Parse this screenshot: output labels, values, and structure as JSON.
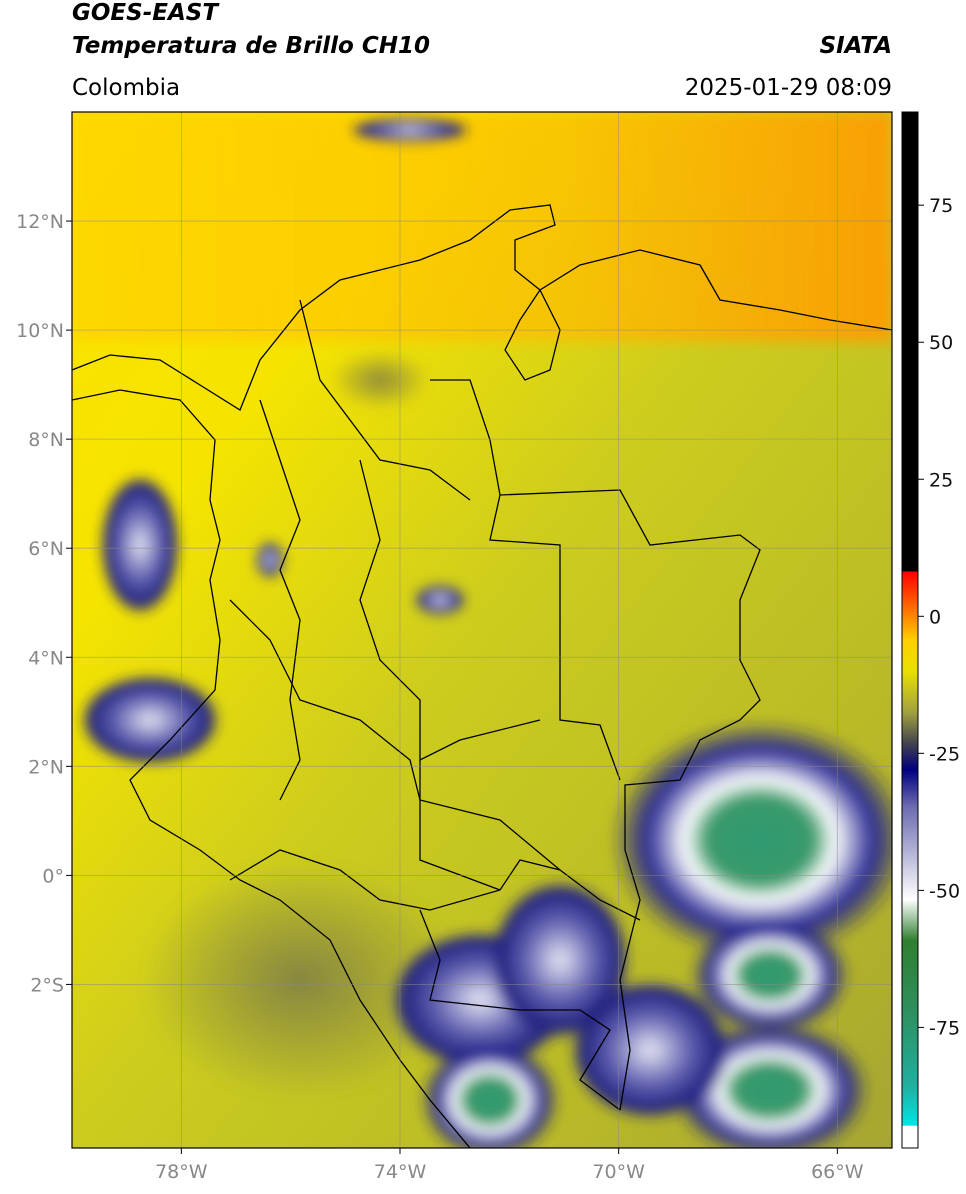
{
  "header": {
    "title": "GOES-EAST",
    "subtitle": "Temperatura de Brillo CH10",
    "source": "SIATA",
    "region": "Colombia",
    "datetime": "2025-01-29 08:09"
  },
  "map": {
    "xlim": [
      -80,
      -65
    ],
    "ylim": [
      -5,
      14
    ],
    "xticks": [
      {
        "value": -78,
        "label": "78°W"
      },
      {
        "value": -74,
        "label": "74°W"
      },
      {
        "value": -70,
        "label": "70°W"
      },
      {
        "value": -66,
        "label": "66°W"
      }
    ],
    "yticks": [
      {
        "value": 12,
        "label": "12°N"
      },
      {
        "value": 10,
        "label": "10°N"
      },
      {
        "value": 8,
        "label": "8°N"
      },
      {
        "value": 6,
        "label": "6°N"
      },
      {
        "value": 4,
        "label": "4°N"
      },
      {
        "value": 2,
        "label": "2°N"
      },
      {
        "value": 0,
        "label": "0°"
      },
      {
        "value": -2,
        "label": "2°S"
      }
    ],
    "grid": true
  },
  "colorbar": {
    "lim": [
      -97,
      92
    ],
    "ticks": [
      75,
      50,
      25,
      0,
      -25,
      -50,
      -75
    ]
  }
}
